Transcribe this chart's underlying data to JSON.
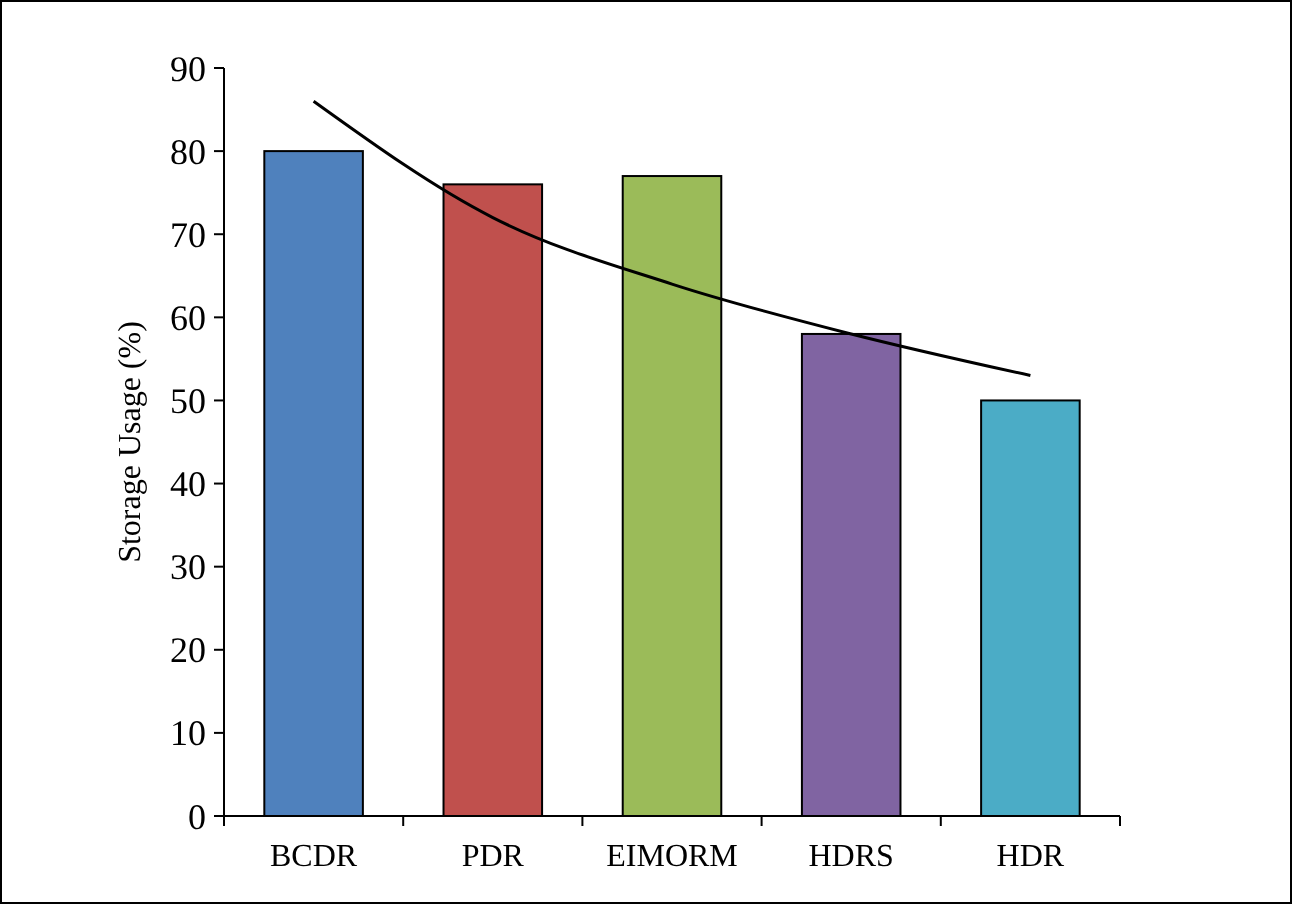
{
  "chart_data": {
    "type": "bar",
    "ylabel": "Storage Usage (%)",
    "categories": [
      "BCDR",
      "PDR",
      "EIMORM",
      "HDRS",
      "HDR"
    ],
    "series": [
      {
        "values": [
          80,
          76,
          77,
          58,
          50
        ],
        "colors": [
          "#4f81bd",
          "#c0504d",
          "#9bbb59",
          "#8064a2",
          "#4bacc6"
        ]
      },
      {
        "type": "line",
        "color": "#000000",
        "values": [
          86,
          72,
          64,
          58,
          53
        ]
      }
    ],
    "ylim": [
      0,
      90
    ],
    "yticks": [
      0,
      10,
      20,
      30,
      40,
      50,
      60,
      70,
      80,
      90
    ],
    "grid": false
  }
}
